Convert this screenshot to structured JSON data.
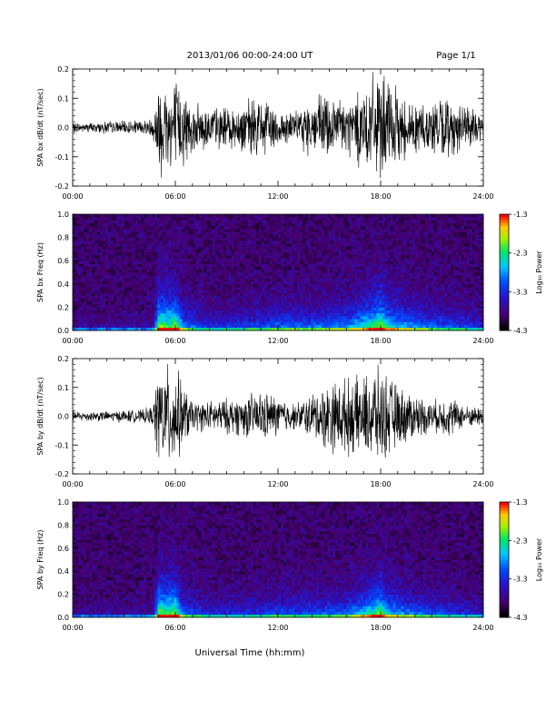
{
  "header": {
    "title": "2013/01/06  00:00-24:00 UT",
    "page": "Page 1/1"
  },
  "footer": {
    "xlabel": "Universal Time (hh:mm)"
  },
  "colorbar": {
    "title": "Log₁₀ Power",
    "ticks": [
      "-1.3",
      "-2.3",
      "-3.3",
      "-4.3"
    ]
  },
  "chart_data": [
    {
      "type": "line",
      "ylabel": "SPA bx dB/dt (nT/sec)",
      "x_tick_labels": [
        "00:00",
        "06:00",
        "12:00",
        "18:00",
        "24:00"
      ],
      "y_tick_labels": [
        "0.2",
        "0.1",
        "0.0",
        "-0.1",
        "-0.2"
      ],
      "xlim": [
        0,
        24
      ],
      "ylim": [
        -0.2,
        0.2
      ],
      "series": [
        {
          "x": [
            0,
            1,
            2,
            3,
            4,
            4.7,
            5.0,
            5.5,
            6.0,
            6.5,
            7,
            8,
            9,
            10,
            11,
            12,
            13,
            14,
            15,
            16,
            17,
            17.5,
            18,
            18.5,
            19,
            20,
            21,
            22,
            23,
            24
          ],
          "amplitude": [
            0.02,
            0.02,
            0.025,
            0.025,
            0.03,
            0.04,
            0.2,
            0.2,
            0.2,
            0.15,
            0.09,
            0.09,
            0.08,
            0.1,
            0.12,
            0.08,
            0.06,
            0.12,
            0.14,
            0.11,
            0.17,
            0.2,
            0.2,
            0.18,
            0.14,
            0.1,
            0.11,
            0.12,
            0.08,
            0.06
          ]
        }
      ]
    },
    {
      "type": "heatmap",
      "ylabel": "SPA bx Freq (Hz)",
      "x_tick_labels": [
        "00:00",
        "06:00",
        "12:00",
        "18:00",
        "24:00"
      ],
      "y_tick_labels": [
        "1.0",
        "0.8",
        "0.6",
        "0.4",
        "0.2",
        "0.0"
      ],
      "xlim": [
        0,
        24
      ],
      "ylim": [
        0,
        1.0
      ],
      "zlim": [
        -4.3,
        -1.3
      ],
      "activity_x": [
        0,
        4.7,
        5.0,
        5.5,
        6.0,
        6.5,
        8,
        10,
        12,
        14,
        16,
        17.5,
        18,
        18.5,
        20,
        22,
        24
      ],
      "activity_level": [
        0.12,
        0.15,
        0.85,
        0.8,
        0.85,
        0.5,
        0.3,
        0.35,
        0.45,
        0.45,
        0.5,
        0.75,
        0.85,
        0.65,
        0.5,
        0.4,
        0.3
      ]
    },
    {
      "type": "line",
      "ylabel": "SPA by dB/dt (nT/sec)",
      "x_tick_labels": [
        "00:00",
        "06:00",
        "12:00",
        "18:00",
        "24:00"
      ],
      "y_tick_labels": [
        "0.2",
        "0.1",
        "0.0",
        "-0.1",
        "-0.2"
      ],
      "xlim": [
        0,
        24
      ],
      "ylim": [
        -0.2,
        0.2
      ],
      "series": [
        {
          "x": [
            0,
            1,
            2,
            3,
            4,
            4.7,
            5.0,
            5.5,
            6.0,
            6.5,
            7,
            8,
            9,
            10,
            11,
            12,
            13,
            14,
            15,
            16,
            17,
            17.5,
            18,
            18.5,
            19,
            20,
            21,
            22,
            23,
            24
          ],
          "amplitude": [
            0.02,
            0.02,
            0.02,
            0.025,
            0.025,
            0.04,
            0.2,
            0.2,
            0.2,
            0.12,
            0.06,
            0.06,
            0.07,
            0.08,
            0.1,
            0.08,
            0.05,
            0.09,
            0.14,
            0.15,
            0.15,
            0.2,
            0.18,
            0.16,
            0.12,
            0.09,
            0.06,
            0.08,
            0.04,
            0.04
          ]
        }
      ]
    },
    {
      "type": "heatmap",
      "ylabel": "SPA by Freq (Hz)",
      "x_tick_labels": [
        "00:00",
        "06:00",
        "12:00",
        "18:00",
        "24:00"
      ],
      "y_tick_labels": [
        "1.0",
        "0.8",
        "0.6",
        "0.4",
        "0.2",
        "0.0"
      ],
      "xlim": [
        0,
        24
      ],
      "ylim": [
        0,
        1.0
      ],
      "zlim": [
        -4.3,
        -1.3
      ],
      "activity_x": [
        0,
        4.7,
        5.0,
        5.5,
        6.0,
        6.5,
        8,
        10,
        12,
        14,
        16,
        17.5,
        18,
        18.5,
        20,
        22,
        24
      ],
      "activity_level": [
        0.12,
        0.15,
        0.85,
        0.8,
        0.85,
        0.45,
        0.3,
        0.3,
        0.4,
        0.4,
        0.45,
        0.7,
        0.8,
        0.6,
        0.45,
        0.35,
        0.25
      ]
    }
  ]
}
